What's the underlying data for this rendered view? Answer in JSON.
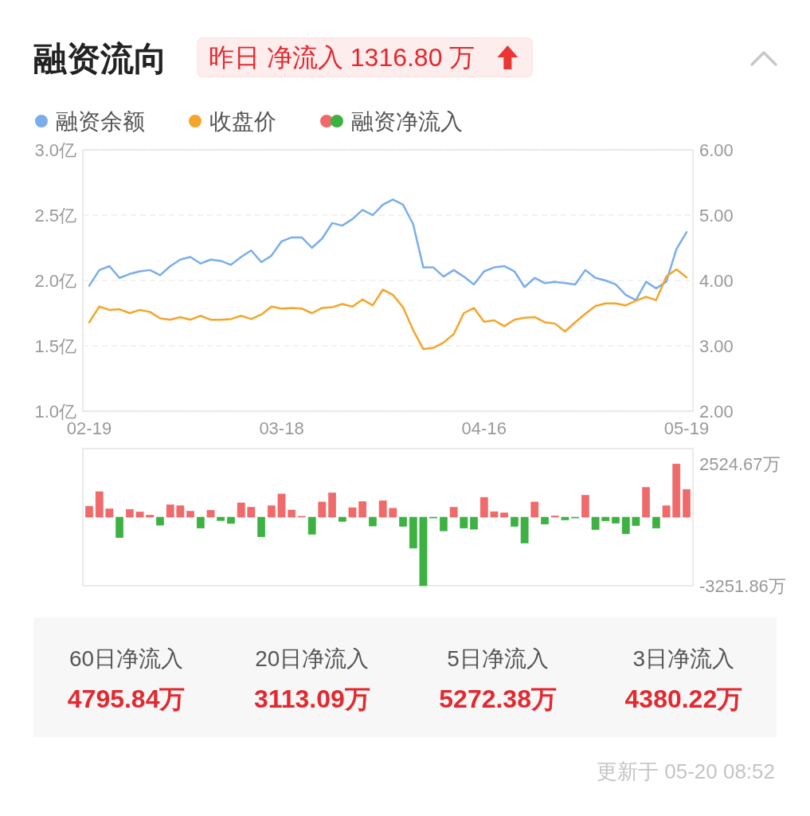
{
  "chart_data": [
    {
      "type": "line",
      "title": "融资流向",
      "subtitle": "昨日 净流入 1316.80 万",
      "categories": [
        "02-19",
        null,
        null,
        null,
        null,
        null,
        null,
        null,
        null,
        null,
        null,
        null,
        null,
        null,
        null,
        null,
        null,
        null,
        null,
        "03-18",
        null,
        null,
        null,
        null,
        null,
        null,
        null,
        null,
        null,
        null,
        null,
        null,
        null,
        null,
        null,
        null,
        null,
        null,
        null,
        "04-16",
        null,
        null,
        null,
        null,
        null,
        null,
        null,
        null,
        null,
        null,
        null,
        null,
        null,
        null,
        null,
        null,
        null,
        null,
        null,
        "05-19"
      ],
      "series": [
        {
          "name": "融资余额",
          "color": "#7aaeea",
          "values": [
            1.96,
            2.08,
            2.11,
            2.02,
            2.05,
            2.07,
            2.08,
            2.04,
            2.11,
            2.16,
            2.18,
            2.13,
            2.16,
            2.15,
            2.12,
            2.18,
            2.23,
            2.14,
            2.19,
            2.3,
            2.33,
            2.33,
            2.25,
            2.32,
            2.44,
            2.42,
            2.47,
            2.54,
            2.5,
            2.58,
            2.62,
            2.58,
            2.43,
            2.1,
            2.1,
            2.03,
            2.08,
            2.03,
            1.97,
            2.07,
            2.1,
            2.11,
            2.07,
            1.95,
            2.02,
            1.98,
            1.99,
            1.98,
            1.97,
            2.08,
            2.02,
            2.0,
            1.97,
            1.89,
            1.85,
            1.99,
            1.94,
            1.99,
            2.24,
            2.37
          ]
        },
        {
          "name": "收盘价",
          "color": "#f5a52a",
          "axis": "y2",
          "values": [
            3.36,
            3.6,
            3.55,
            3.56,
            3.5,
            3.55,
            3.52,
            3.42,
            3.4,
            3.44,
            3.4,
            3.46,
            3.4,
            3.4,
            3.41,
            3.46,
            3.41,
            3.48,
            3.6,
            3.57,
            3.58,
            3.57,
            3.5,
            3.58,
            3.59,
            3.64,
            3.6,
            3.71,
            3.62,
            3.86,
            3.78,
            3.59,
            3.24,
            2.95,
            2.97,
            3.05,
            3.18,
            3.5,
            3.58,
            3.37,
            3.39,
            3.3,
            3.4,
            3.43,
            3.44,
            3.36,
            3.34,
            3.22,
            3.36,
            3.49,
            3.61,
            3.65,
            3.65,
            3.62,
            3.69,
            3.75,
            3.7,
            4.06,
            4.17,
            4.05
          ]
        }
      ],
      "ylim": [
        1.0,
        3.0
      ],
      "yticks": [
        {
          "value": 3.0,
          "label": "3.0亿"
        },
        {
          "value": 2.5,
          "label": "2.5亿"
        },
        {
          "value": 2.0,
          "label": "2.0亿"
        },
        {
          "value": 1.5,
          "label": "1.5亿"
        },
        {
          "value": 1.0,
          "label": "1.0亿"
        }
      ],
      "y2lim": [
        2.0,
        6.0
      ],
      "y2ticks": [
        {
          "value": 6,
          "label": "6.00"
        },
        {
          "value": 5,
          "label": "5.00"
        },
        {
          "value": 4,
          "label": "4.00"
        },
        {
          "value": 3,
          "label": "3.00"
        },
        {
          "value": 2,
          "label": "2.00"
        }
      ],
      "grid": "y",
      "legend": "top left"
    },
    {
      "type": "bar",
      "categories": [
        null,
        null,
        null,
        null,
        null,
        null,
        null,
        null,
        null,
        null,
        null,
        null,
        null,
        null,
        null,
        null,
        null,
        null,
        null,
        null,
        null,
        null,
        null,
        null,
        null,
        null,
        null,
        null,
        null,
        null,
        null,
        null,
        null,
        null,
        null,
        null,
        null,
        null,
        null,
        null,
        null,
        null,
        null,
        null,
        null,
        null,
        null,
        null,
        null,
        null,
        null,
        null,
        null,
        null,
        null,
        null,
        null,
        null,
        null,
        null
      ],
      "series": [
        {
          "name": "融资净流入",
          "values": [
            520,
            1210,
            390,
            -970,
            370,
            250,
            100,
            -380,
            590,
            540,
            280,
            -520,
            330,
            -160,
            -300,
            680,
            470,
            -930,
            540,
            1100,
            340,
            40,
            -810,
            720,
            1150,
            -200,
            450,
            740,
            -420,
            780,
            420,
            -440,
            -1470,
            -3251.86,
            -40,
            -650,
            470,
            -520,
            -570,
            940,
            260,
            200,
            -440,
            -1230,
            720,
            -330,
            60,
            -130,
            -40,
            1040,
            -590,
            -180,
            -290,
            -790,
            -400,
            1410,
            -520,
            540,
            2524.67,
            1316.8
          ],
          "colors": [
            "#ef6a6a",
            "#ef6a6a",
            "#ef6a6a",
            "#3db142",
            "#ef6a6a",
            "#ef6a6a",
            "#ef6a6a",
            "#3db142",
            "#ef6a6a",
            "#ef6a6a",
            "#ef6a6a",
            "#3db142",
            "#ef6a6a",
            "#3db142",
            "#3db142",
            "#ef6a6a",
            "#ef6a6a",
            "#3db142",
            "#ef6a6a",
            "#ef6a6a",
            "#ef6a6a",
            "#ef6a6a",
            "#3db142",
            "#ef6a6a",
            "#ef6a6a",
            "#3db142",
            "#ef6a6a",
            "#ef6a6a",
            "#3db142",
            "#ef6a6a",
            "#ef6a6a",
            "#3db142",
            "#3db142",
            "#3db142",
            "#3db142",
            "#3db142",
            "#ef6a6a",
            "#3db142",
            "#3db142",
            "#ef6a6a",
            "#ef6a6a",
            "#ef6a6a",
            "#3db142",
            "#3db142",
            "#ef6a6a",
            "#3db142",
            "#ef6a6a",
            "#3db142",
            "#3db142",
            "#ef6a6a",
            "#3db142",
            "#3db142",
            "#3db142",
            "#3db142",
            "#3db142",
            "#ef6a6a",
            "#3db142",
            "#ef6a6a",
            "#ef6a6a",
            "#ef6a6a"
          ]
        }
      ],
      "ylim": [
        -3251.86,
        3251.86
      ],
      "yticks": [
        {
          "value": 2524.67,
          "label": "2524.67万"
        },
        {
          "value": -3251.86,
          "label": "-3251.86万"
        }
      ],
      "legend": "top left"
    },
    {
      "type": "other",
      "categories": [
        "60日净流入",
        "20日净流入",
        "5日净流入",
        "3日净流入"
      ],
      "value_labels": [
        "4795.84万",
        "3113.09万",
        "5272.38万",
        "4380.22万"
      ],
      "annotations": [
        "更新于 05-20 08:52"
      ]
    }
  ]
}
